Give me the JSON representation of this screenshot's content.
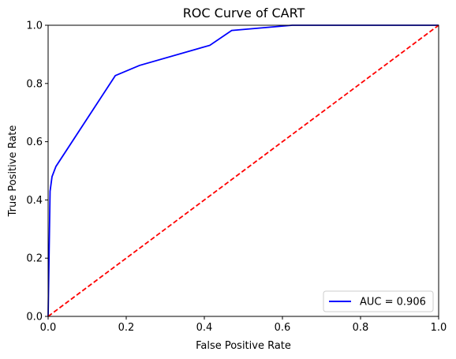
{
  "chart_data": {
    "type": "line",
    "title": "ROC Curve of CART",
    "xlabel": "False Positive Rate",
    "ylabel": "True Positive Rate",
    "xlim": [
      0,
      1
    ],
    "ylim": [
      0,
      1
    ],
    "xticks": [
      "0.0",
      "0.2",
      "0.4",
      "0.6",
      "0.8",
      "1.0"
    ],
    "yticks": [
      "0.0",
      "0.2",
      "0.4",
      "0.6",
      "0.8",
      "1.0"
    ],
    "grid": false,
    "legend_position": "bottom-right",
    "series": [
      {
        "name": "AUC = 0.906",
        "color": "#0000ff",
        "style": "solid",
        "x": [
          0.0,
          0.005,
          0.01,
          0.02,
          0.172,
          0.234,
          0.414,
          0.47,
          0.625,
          1.0
        ],
        "y": [
          0.0,
          0.43,
          0.48,
          0.515,
          0.827,
          0.862,
          0.931,
          0.982,
          1.0,
          1.0
        ]
      },
      {
        "color": "#ff0000",
        "style": "dashed",
        "x": [
          0,
          1
        ],
        "y": [
          0,
          1
        ]
      }
    ]
  }
}
